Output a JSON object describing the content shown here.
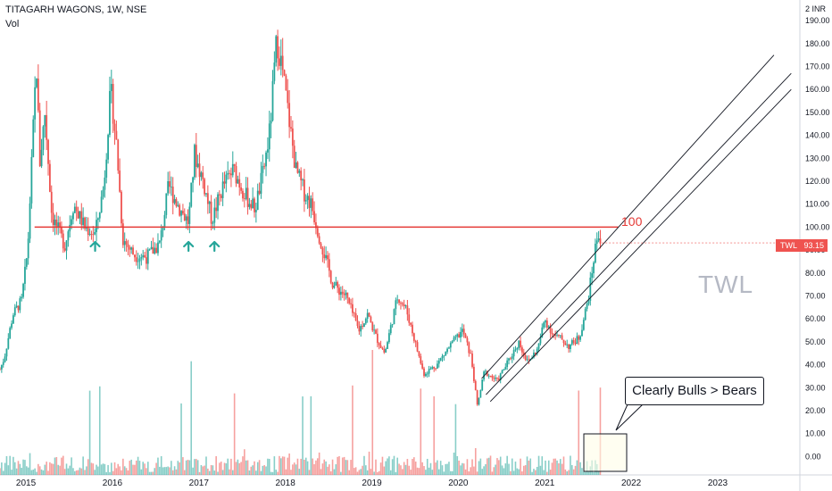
{
  "header": {
    "title": "TITAGARH WAGONS, 1W, NSE",
    "volume_label": "Vol"
  },
  "price_tag": {
    "symbol": "TWL",
    "price": "93.15"
  },
  "watermark": "TWL",
  "level_label": "100",
  "callout": "Clearly Bulls > Bears",
  "currency_label": "2 INR",
  "colors": {
    "up": "#26a69a",
    "down": "#ef5350",
    "level_line": "#e53935",
    "channel": "#131722",
    "arrow": "#26a69a",
    "box_fill": "#fffde7"
  },
  "chart_data": {
    "type": "candlestick",
    "title": "TITAGARH WAGONS, 1W, NSE",
    "xlabel": "",
    "ylabel": "",
    "y_ticks": [
      0,
      10,
      20,
      30,
      40,
      50,
      60,
      70,
      80,
      90,
      100,
      110,
      120,
      130,
      140,
      150,
      160,
      170,
      180,
      190
    ],
    "y_tick_labels": [
      "0.00",
      "10.00",
      "20.00",
      "30.00",
      "40.00",
      "50.00",
      "60.00",
      "70.00",
      "80.00",
      "90.00",
      "100.00",
      "110.00",
      "120.00",
      "130.00",
      "140.00",
      "150.00",
      "160.00",
      "170.00",
      "180.00",
      "190.00"
    ],
    "x_labels": [
      {
        "label": "2015",
        "t": 2015.0
      },
      {
        "label": "2016",
        "t": 2016.0
      },
      {
        "label": "2017",
        "t": 2017.0
      },
      {
        "label": "2018",
        "t": 2018.0
      },
      {
        "label": "2019",
        "t": 2019.0
      },
      {
        "label": "2020",
        "t": 2020.0
      },
      {
        "label": "2021",
        "t": 2021.0
      },
      {
        "label": "2022",
        "t": 2022.0
      },
      {
        "label": "2023",
        "t": 2023.0
      }
    ],
    "ylim": [
      -8,
      199
    ],
    "xlim": [
      2014.7,
      2023.95
    ],
    "price_path": [
      [
        2014.7,
        38
      ],
      [
        2014.75,
        43
      ],
      [
        2014.85,
        62
      ],
      [
        2014.95,
        68
      ],
      [
        2015.02,
        90
      ],
      [
        2015.12,
        172
      ],
      [
        2015.16,
        128
      ],
      [
        2015.22,
        150
      ],
      [
        2015.3,
        105
      ],
      [
        2015.45,
        92
      ],
      [
        2015.55,
        110
      ],
      [
        2015.68,
        100
      ],
      [
        2015.8,
        97
      ],
      [
        2015.9,
        118
      ],
      [
        2015.98,
        160
      ],
      [
        2016.05,
        135
      ],
      [
        2016.12,
        95
      ],
      [
        2016.25,
        88
      ],
      [
        2016.4,
        87
      ],
      [
        2016.55,
        93
      ],
      [
        2016.65,
        118
      ],
      [
        2016.78,
        108
      ],
      [
        2016.88,
        102
      ],
      [
        2016.95,
        132
      ],
      [
        2017.05,
        120
      ],
      [
        2017.15,
        103
      ],
      [
        2017.28,
        118
      ],
      [
        2017.4,
        125
      ],
      [
        2017.55,
        113
      ],
      [
        2017.65,
        108
      ],
      [
        2017.75,
        125
      ],
      [
        2017.82,
        142
      ],
      [
        2017.9,
        182
      ],
      [
        2017.96,
        170
      ],
      [
        2018.05,
        145
      ],
      [
        2018.12,
        125
      ],
      [
        2018.22,
        115
      ],
      [
        2018.3,
        110
      ],
      [
        2018.4,
        95
      ],
      [
        2018.55,
        75
      ],
      [
        2018.7,
        70
      ],
      [
        2018.85,
        55
      ],
      [
        2018.95,
        62
      ],
      [
        2019.05,
        52
      ],
      [
        2019.15,
        45
      ],
      [
        2019.3,
        70
      ],
      [
        2019.4,
        64
      ],
      [
        2019.5,
        50
      ],
      [
        2019.6,
        36
      ],
      [
        2019.75,
        40
      ],
      [
        2019.9,
        48
      ],
      [
        2020.05,
        55
      ],
      [
        2020.15,
        43
      ],
      [
        2020.22,
        22
      ],
      [
        2020.3,
        37
      ],
      [
        2020.45,
        33
      ],
      [
        2020.6,
        43
      ],
      [
        2020.7,
        50
      ],
      [
        2020.8,
        41
      ],
      [
        2020.92,
        47
      ],
      [
        2021.0,
        60
      ],
      [
        2021.1,
        53
      ],
      [
        2021.2,
        51
      ],
      [
        2021.28,
        48
      ],
      [
        2021.4,
        52
      ],
      [
        2021.5,
        68
      ],
      [
        2021.58,
        90
      ],
      [
        2021.62,
        98
      ],
      [
        2021.65,
        93
      ]
    ],
    "level_line": {
      "value": 100,
      "from_t": 2015.1,
      "to_t": 2021.85
    },
    "channel_lines": [
      [
        [
          2020.27,
          34
        ],
        [
          2023.65,
          175
        ]
      ],
      [
        [
          2020.32,
          27
        ],
        [
          2023.85,
          167
        ]
      ],
      [
        [
          2020.37,
          24
        ],
        [
          2023.85,
          160
        ]
      ]
    ],
    "arrows_at": [
      2015.8,
      2016.88,
      2017.18
    ],
    "current_price": 93.15
  }
}
